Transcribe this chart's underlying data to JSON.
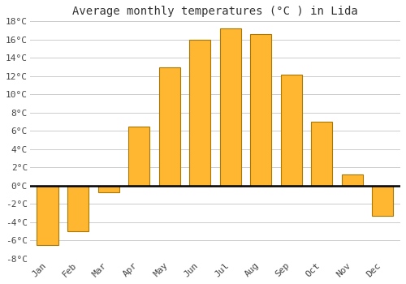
{
  "title": "Average monthly temperatures (°C ) in Lida",
  "months": [
    "Jan",
    "Feb",
    "Mar",
    "Apr",
    "May",
    "Jun",
    "Jul",
    "Aug",
    "Sep",
    "Oct",
    "Nov",
    "Dec"
  ],
  "values": [
    -6.5,
    -5.0,
    -0.7,
    6.5,
    13.0,
    16.0,
    17.2,
    16.6,
    12.2,
    7.0,
    1.2,
    -3.3
  ],
  "bar_color_top": "#FFB732",
  "bar_color_bottom": "#FF9500",
  "bar_edge_color": "#AA7700",
  "ylim": [
    -8,
    18
  ],
  "yticks": [
    -8,
    -6,
    -4,
    -2,
    0,
    2,
    4,
    6,
    8,
    10,
    12,
    14,
    16,
    18
  ],
  "background_color": "#FFFFFF",
  "grid_color": "#CCCCCC",
  "title_fontsize": 10,
  "tick_fontsize": 8,
  "font_family": "monospace"
}
